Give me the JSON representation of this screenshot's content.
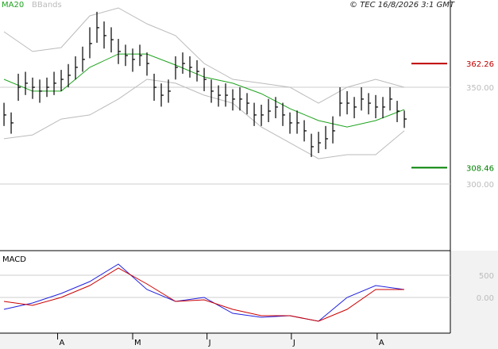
{
  "chart_data": [
    {
      "type": "ohlc",
      "source": "© TEC 16/8/2026 3:1 GMT",
      "xlim": [
        -0.56,
        62.44
      ],
      "ylim": [
        266,
        395.1
      ],
      "yticks": [
        {
          "value": 350,
          "label": "350.00"
        },
        {
          "value": 300,
          "label": "300.00"
        }
      ],
      "grid": true,
      "bar_color": "#000000",
      "high": [
        342,
        337,
        357,
        358,
        355,
        354,
        355,
        358,
        359,
        362,
        366,
        371,
        381,
        389,
        384,
        381,
        375,
        372,
        370,
        372,
        368,
        357,
        352,
        354,
        366,
        368,
        366,
        364,
        360,
        354,
        351,
        352,
        349,
        350,
        347,
        342,
        341,
        344,
        345,
        342,
        337,
        338,
        333,
        326,
        327,
        330,
        335,
        350,
        348,
        345,
        350,
        347,
        346,
        345,
        350,
        343,
        338
      ],
      "low": [
        330,
        326,
        343,
        346,
        344,
        342,
        345,
        346,
        348,
        350,
        354,
        358,
        365,
        373,
        370,
        368,
        362,
        361,
        358,
        361,
        356,
        343,
        340,
        342,
        354,
        357,
        355,
        353,
        348,
        342,
        340,
        340,
        338,
        338,
        336,
        330,
        330,
        332,
        334,
        330,
        326,
        326,
        322,
        314,
        316,
        318,
        321,
        335,
        336,
        334,
        338,
        336,
        334,
        334,
        338,
        332,
        329
      ],
      "close": [
        335.7,
        331.6,
        350.0,
        352.1,
        350.0,
        348.0,
        350.0,
        352.1,
        354.1,
        356.2,
        360.3,
        364.4,
        372.6,
        380.8,
        376.7,
        374.6,
        368.5,
        366.4,
        364.4,
        366.4,
        362.3,
        350.0,
        345.9,
        348.0,
        360.3,
        362.3,
        360.3,
        358.2,
        354.1,
        348.0,
        345.9,
        345.9,
        343.9,
        343.9,
        341.8,
        335.7,
        335.7,
        337.7,
        339.8,
        335.7,
        331.6,
        331.6,
        327.5,
        319.3,
        321.3,
        323.4,
        327.5,
        341.8,
        341.8,
        339.8,
        343.9,
        341.8,
        339.8,
        339.8,
        343.9,
        337.7,
        333.6
      ],
      "series": [
        {
          "name": "MA20",
          "color": "#1fa31f",
          "x": [
            0,
            4,
            8,
            12,
            16,
            20,
            24,
            28,
            32,
            36,
            40,
            44,
            48,
            52,
            56
          ],
          "values": [
            354.1,
            348.0,
            348.0,
            360.3,
            367.2,
            367.2,
            361.5,
            355.3,
            352.1,
            346.7,
            339.0,
            332.8,
            329.5,
            332.8,
            338.5
          ]
        },
        {
          "name": "BBands",
          "color": "#bbbbbb",
          "x": [
            0,
            4,
            8,
            12,
            16,
            20,
            24,
            28,
            32,
            36,
            40,
            44,
            48,
            52,
            56
          ],
          "upper": [
            378.7,
            368.5,
            370.5,
            386.9,
            391.0,
            382.8,
            376.7,
            362.3,
            354.1,
            352.1,
            350.0,
            341.8,
            350.0,
            354.1,
            350.0
          ],
          "lower": [
            323.4,
            325.4,
            333.6,
            335.7,
            343.9,
            354.1,
            352.1,
            345.9,
            341.8,
            329.5,
            321.3,
            313.1,
            315.2,
            315.2,
            327.5
          ]
        }
      ],
      "levels": [
        {
          "value": 362.26,
          "color": "#c00000"
        },
        {
          "value": 308.46,
          "color": "#008000"
        }
      ]
    },
    {
      "type": "line",
      "title": "MACD",
      "xlim": [
        -0.56,
        62.44
      ],
      "ylim": [
        -804,
        1018
      ],
      "yticks": [
        500,
        {
          "value": 0,
          "label": "0.00"
        }
      ],
      "grid": true,
      "xticks": [
        {
          "value": 7.5,
          "label": "A"
        },
        {
          "value": 18,
          "label": "M"
        },
        {
          "value": 28.4,
          "label": "J"
        },
        {
          "value": 40.2,
          "label": "J"
        },
        {
          "value": 52.2,
          "label": "A"
        }
      ],
      "series": [
        {
          "color": "#2020e0",
          "x": [
            0,
            4,
            8,
            12,
            16,
            20,
            24,
            28,
            32,
            36,
            40,
            44,
            48,
            52,
            56
          ],
          "values": [
            -268,
            -125,
            89,
            357,
            750,
            179,
            -89,
            0,
            -357,
            -446,
            -411,
            -536,
            0,
            268,
            179
          ]
        },
        {
          "color": "#cc0000",
          "x": [
            0,
            4,
            8,
            12,
            16,
            20,
            24,
            28,
            32,
            36,
            40,
            44,
            48,
            52,
            56
          ],
          "values": [
            -89,
            -179,
            0,
            268,
            661,
            304,
            -89,
            -54,
            -268,
            -411,
            -411,
            -536,
            -268,
            179,
            179
          ]
        }
      ]
    }
  ]
}
